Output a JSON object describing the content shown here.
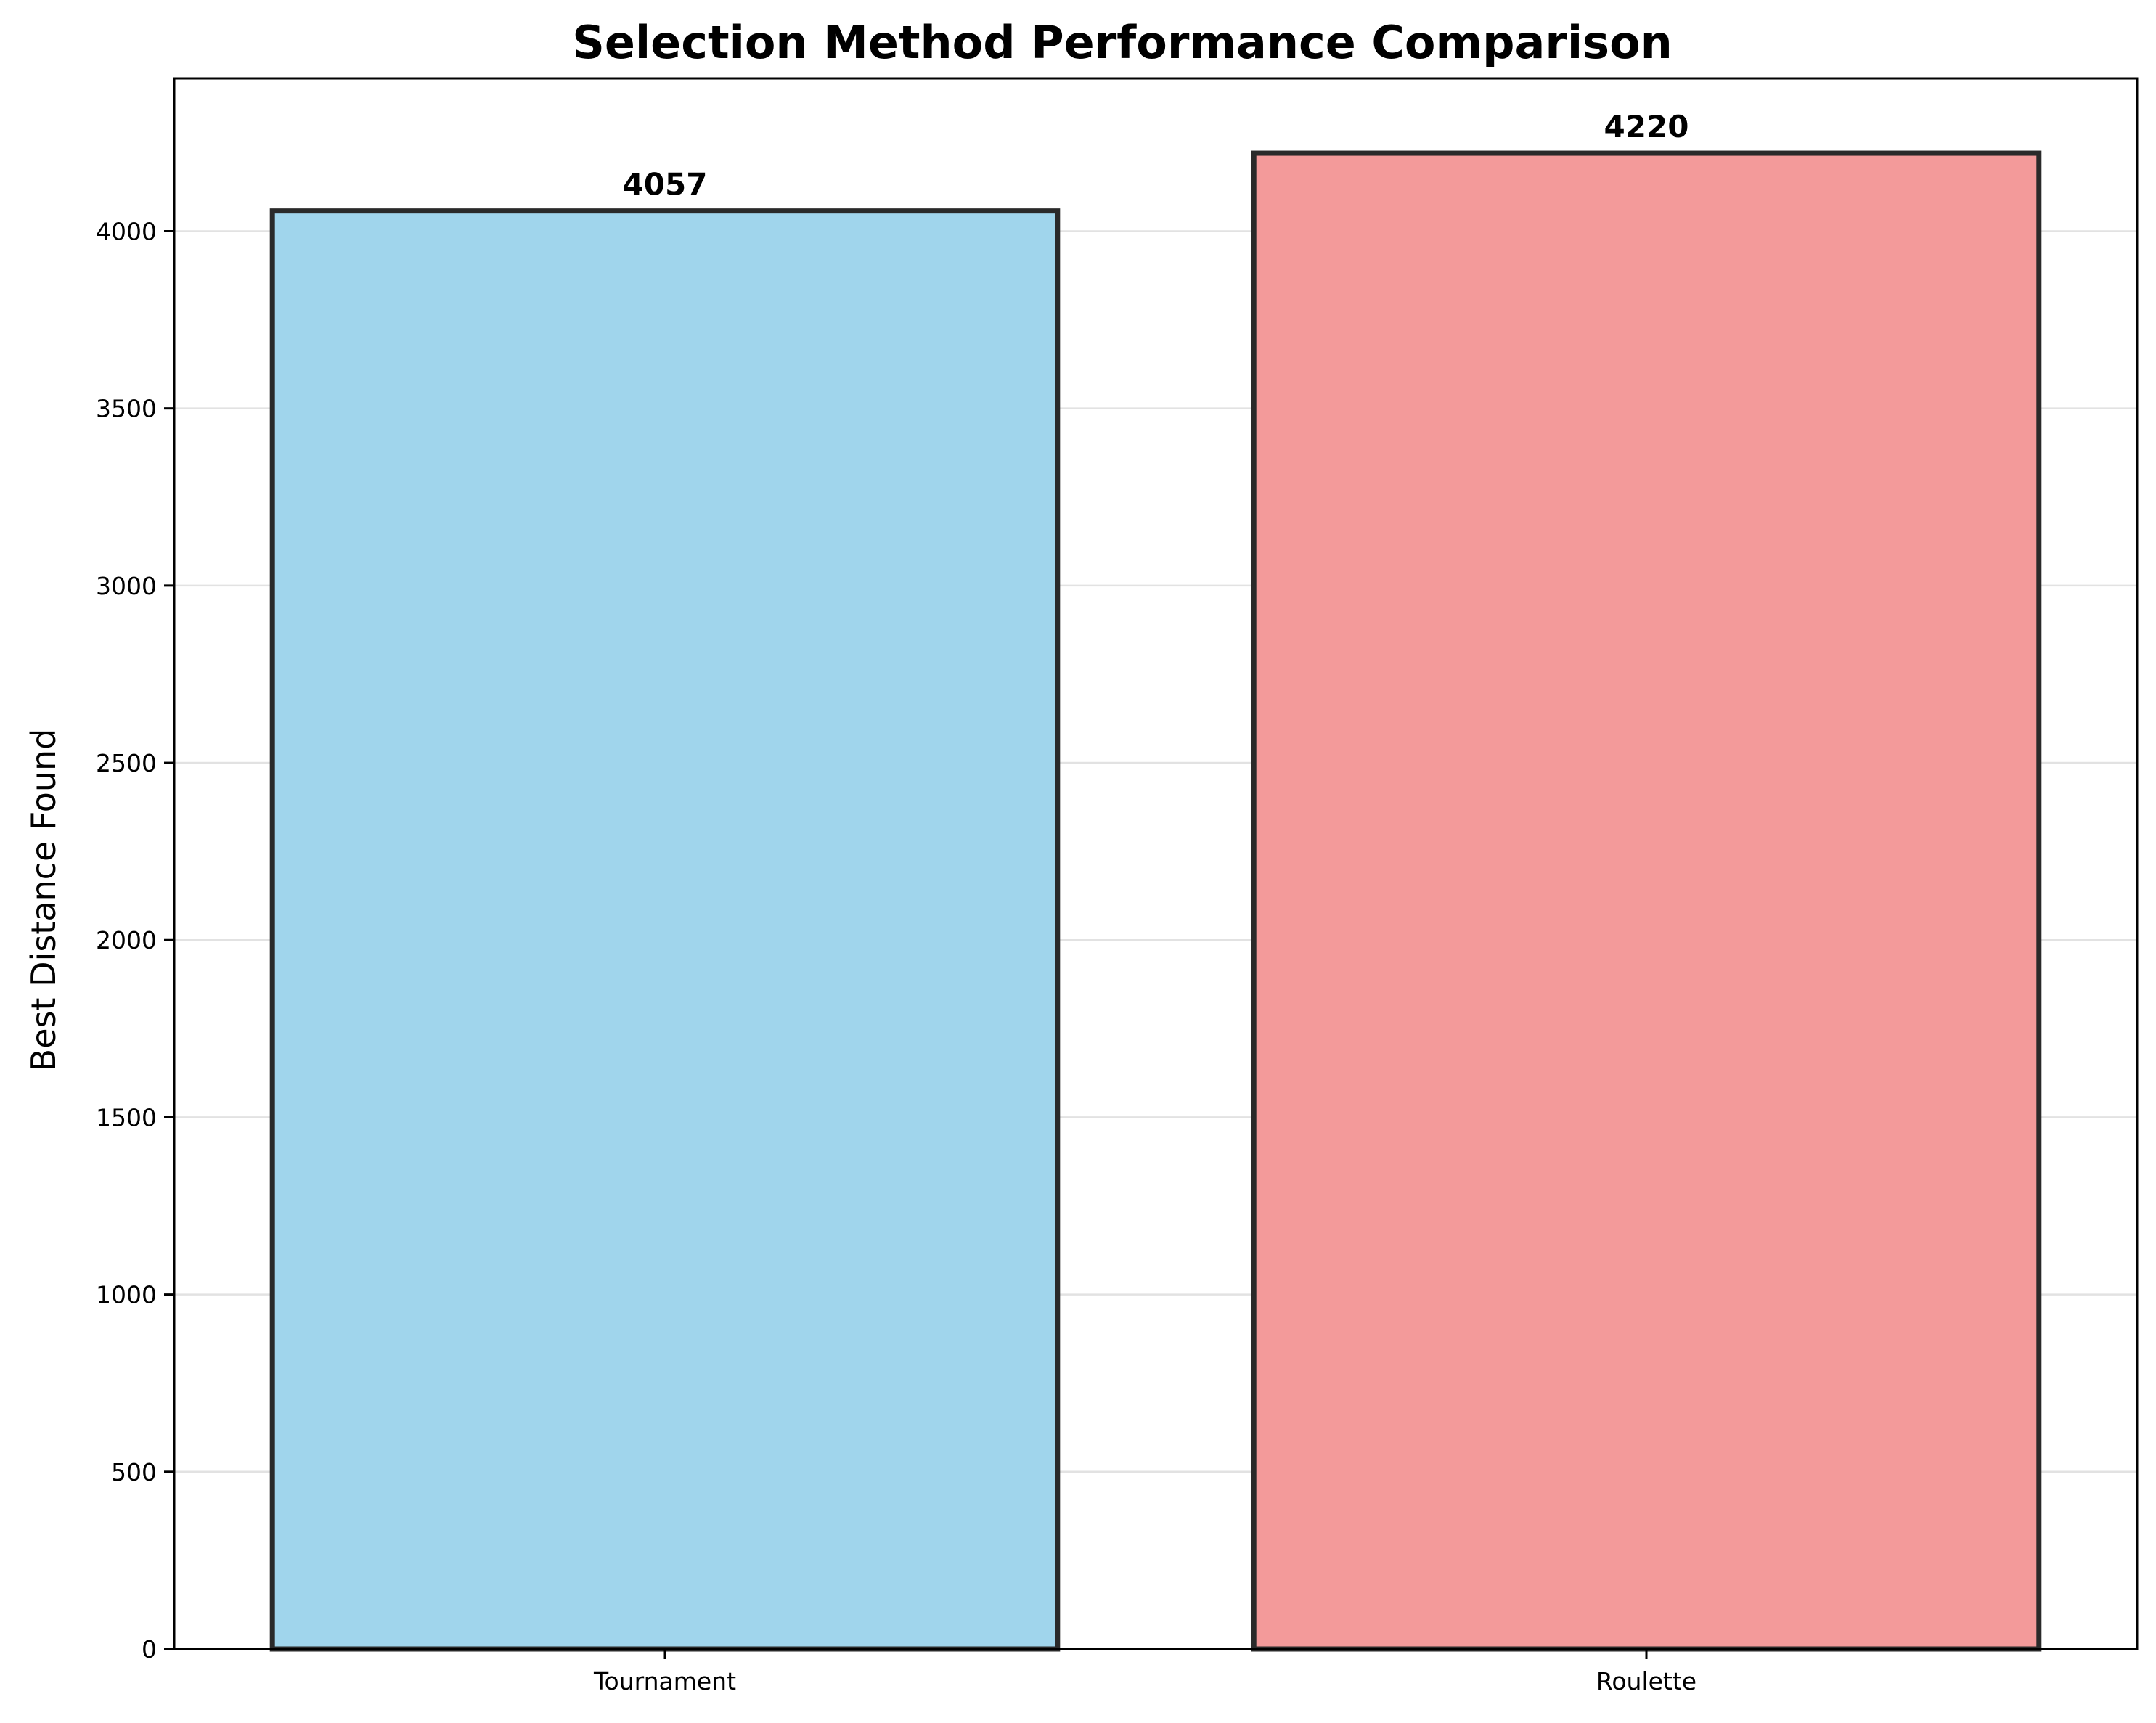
{
  "chart_data": {
    "type": "bar",
    "title": "Selection Method Performance Comparison",
    "xlabel": "",
    "ylabel": "Best Distance Found",
    "categories": [
      "Tournament",
      "Roulette"
    ],
    "values": [
      4057,
      4220
    ],
    "data_labels": [
      "4057",
      "4220"
    ],
    "bar_colors": [
      "#a0d5ec",
      "#f39a9a"
    ],
    "edge_color": "#2a2a2a",
    "ylim": [
      0,
      4431
    ],
    "yticks": [
      0,
      500,
      1000,
      1500,
      2000,
      2500,
      3000,
      3500,
      4000
    ],
    "grid": "y",
    "legend": "none"
  }
}
